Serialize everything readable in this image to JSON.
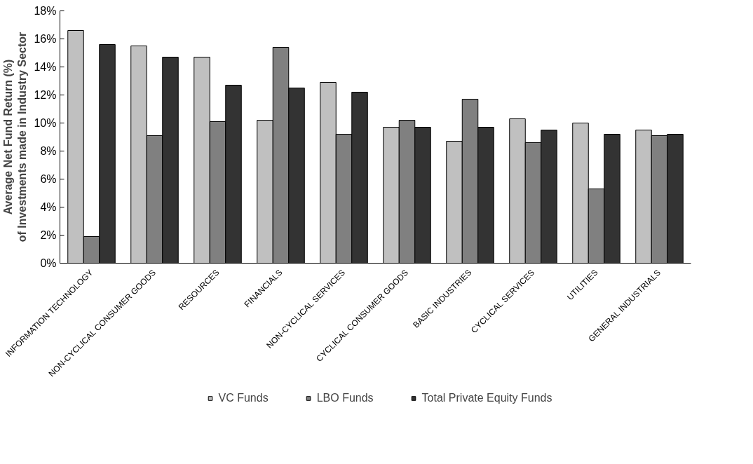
{
  "chart_data": {
    "type": "bar",
    "ylabel": "Average Net Fund Return (%)\nof Investments made in Industry Sector",
    "categories": [
      "INFORMATION TECHNOLOGY",
      "NON-CYCLICAL CONSUMER GOODS",
      "RESOURCES",
      "FINANCIALS",
      "NON-CYCLICAL SERVICES",
      "CYCLICAL CONSUMER GOODS",
      "BASIC INDUSTRIES",
      "CYCLICAL SERVICES",
      "UTILITIES",
      "GENERAL INDUSTRIALS"
    ],
    "series": [
      {
        "name": "VC Funds",
        "color": "#c0c0c0",
        "values": [
          16.6,
          15.5,
          14.7,
          10.2,
          12.9,
          9.7,
          8.7,
          10.3,
          10.0,
          9.5
        ]
      },
      {
        "name": "LBO Funds",
        "color": "#808080",
        "values": [
          1.9,
          9.1,
          10.1,
          15.4,
          9.2,
          10.2,
          11.7,
          8.6,
          5.3,
          9.1
        ]
      },
      {
        "name": "Total Private Equity Funds",
        "color": "#333333",
        "values": [
          15.6,
          14.7,
          12.7,
          12.5,
          12.2,
          9.7,
          9.7,
          9.5,
          9.2,
          9.2
        ]
      }
    ],
    "ylim": [
      0,
      18
    ],
    "yticks": [
      {
        "value": 0,
        "label": "0%"
      },
      {
        "value": 2,
        "label": "2%"
      },
      {
        "value": 4,
        "label": "4%"
      },
      {
        "value": 6,
        "label": "6%"
      },
      {
        "value": 8,
        "label": "8%"
      },
      {
        "value": 10,
        "label": "10%"
      },
      {
        "value": 12,
        "label": "12%"
      },
      {
        "value": 14,
        "label": "14%"
      },
      {
        "value": 16,
        "label": "16%"
      },
      {
        "value": 18,
        "label": "18%"
      }
    ],
    "grid": false,
    "legend": "bottom"
  }
}
